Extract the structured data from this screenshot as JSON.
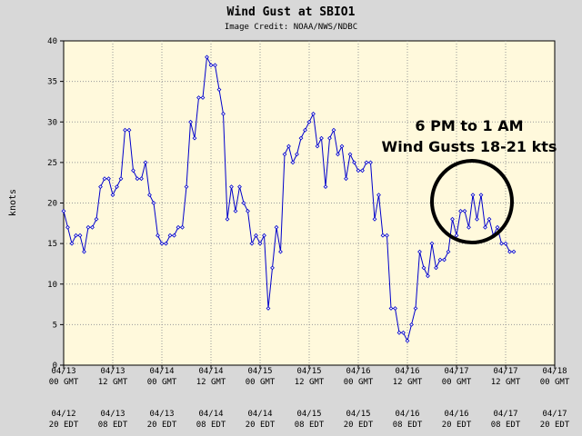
{
  "chart_data": {
    "type": "line",
    "title": "Wind Gust at SBIO1",
    "subtitle": "Image Credit: NOAA/NWS/NDBC",
    "ylabel": "knots",
    "xlabel": "",
    "ylim": [
      0,
      40
    ],
    "yticks": [
      0,
      5,
      10,
      15,
      20,
      25,
      30,
      35,
      40
    ],
    "xlim_hours": [
      0,
      120
    ],
    "xticks": [
      {
        "date_gmt": "04/13",
        "time_gmt": "00 GMT",
        "date_local": "04/12",
        "time_local": "20 EDT"
      },
      {
        "date_gmt": "04/13",
        "time_gmt": "12 GMT",
        "date_local": "04/13",
        "time_local": "08 EDT"
      },
      {
        "date_gmt": "04/14",
        "time_gmt": "00 GMT",
        "date_local": "04/13",
        "time_local": "20 EDT"
      },
      {
        "date_gmt": "04/14",
        "time_gmt": "12 GMT",
        "date_local": "04/14",
        "time_local": "08 EDT"
      },
      {
        "date_gmt": "04/15",
        "time_gmt": "00 GMT",
        "date_local": "04/14",
        "time_local": "20 EDT"
      },
      {
        "date_gmt": "04/15",
        "time_gmt": "12 GMT",
        "date_local": "04/15",
        "time_local": "08 EDT"
      },
      {
        "date_gmt": "04/16",
        "time_gmt": "00 GMT",
        "date_local": "04/15",
        "time_local": "20 EDT"
      },
      {
        "date_gmt": "04/16",
        "time_gmt": "12 GMT",
        "date_local": "04/16",
        "time_local": "08 EDT"
      },
      {
        "date_gmt": "04/17",
        "time_gmt": "00 GMT",
        "date_local": "04/16",
        "time_local": "20 EDT"
      },
      {
        "date_gmt": "04/17",
        "time_gmt": "12 GMT",
        "date_local": "04/17",
        "time_local": "08 EDT"
      },
      {
        "date_gmt": "04/18",
        "time_gmt": "00 GMT",
        "date_local": "04/17",
        "time_local": "20 EDT"
      }
    ],
    "grid": true,
    "series_color": "#0000cc",
    "circle_color": "#000000",
    "series": [
      {
        "values": [
          19,
          17,
          15,
          16,
          16,
          14,
          17,
          17,
          18,
          22,
          23,
          23,
          21,
          22,
          23,
          29,
          29,
          24,
          23,
          23,
          25,
          21,
          20,
          16,
          15,
          15,
          16,
          16,
          17,
          17,
          22,
          30,
          28,
          33,
          33,
          38,
          37,
          37,
          34,
          31,
          18,
          22,
          19,
          22,
          20,
          19,
          15,
          16,
          15,
          16,
          7,
          12,
          17,
          14,
          26,
          27,
          25,
          26,
          28,
          29,
          30,
          31,
          27,
          28,
          22,
          28,
          29,
          26,
          27,
          23,
          26,
          25,
          24,
          24,
          25,
          25,
          18,
          21,
          16,
          16,
          7,
          7,
          4,
          4,
          3,
          5,
          7,
          14,
          12,
          11,
          15,
          12,
          13,
          13,
          14,
          18,
          16,
          19,
          19,
          17,
          21,
          18,
          21,
          17,
          18,
          16,
          17,
          15,
          15,
          14,
          14
        ]
      }
    ],
    "annotation": {
      "line1": "6 PM to 1 AM",
      "line2": "Wind Gusts 18-21 kts"
    }
  }
}
